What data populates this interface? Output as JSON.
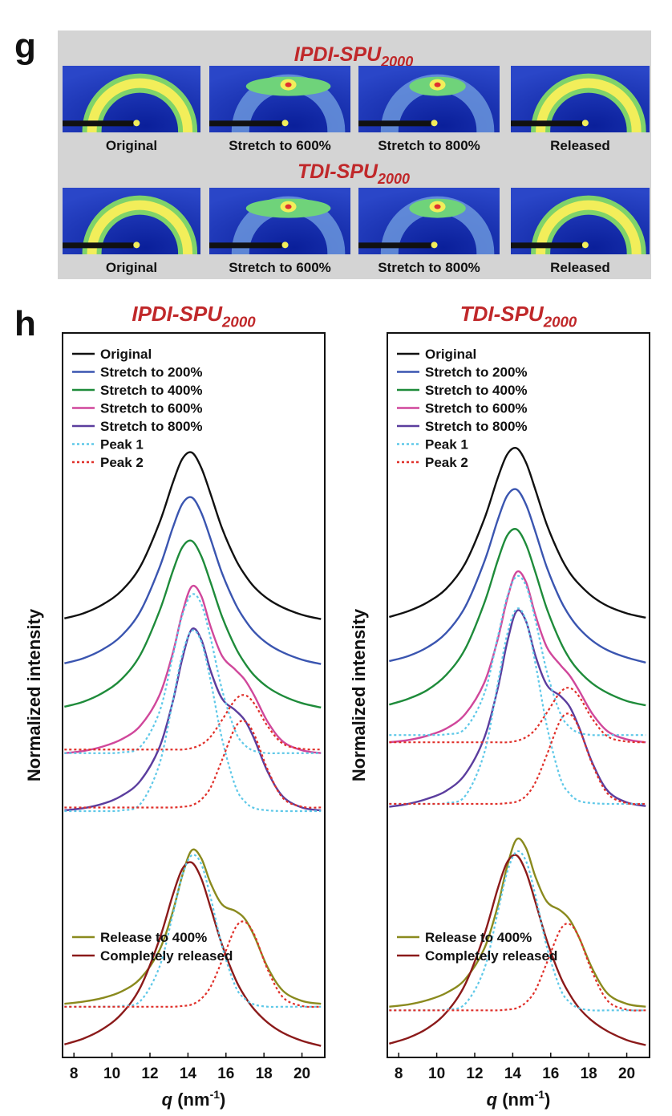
{
  "panel_g": {
    "label": "g",
    "rows": [
      {
        "title": {
          "text": "IPDI-SPU",
          "subscript": "2000"
        },
        "captions": [
          "Original",
          "Stretch to 600%",
          "Stretch to 800%",
          "Released"
        ]
      },
      {
        "title": {
          "text": "TDI-SPU",
          "subscript": "2000"
        },
        "captions": [
          "Original",
          "Stretch to 600%",
          "Stretch to 800%",
          "Released"
        ]
      }
    ]
  },
  "panel_h": {
    "label": "h"
  },
  "chart_data": [
    {
      "type": "line",
      "title": {
        "text": "IPDI-SPU",
        "subscript": "2000"
      },
      "ylabel": "Normalized intensity",
      "xlabel": {
        "symbol": "q",
        "unit": " (nm",
        "power": "-1",
        "close": ")"
      },
      "xlim": [
        7.4,
        21.2
      ],
      "xticks": [
        8,
        10,
        12,
        14,
        16,
        18,
        20
      ],
      "ylim": [
        0,
        100
      ],
      "x": [
        7.5,
        8.5,
        9.5,
        10.5,
        11.5,
        12.5,
        13.2,
        13.7,
        14.2,
        14.7,
        15.2,
        15.8,
        16.5,
        17,
        17.5,
        18.2,
        19,
        20,
        21
      ],
      "series": [
        {
          "name": "Original",
          "color": "#111111",
          "values": [
            60.6,
            61.3,
            62.5,
            64.4,
            67.8,
            73.8,
            79.3,
            82.6,
            83.5,
            81.4,
            77.7,
            73.0,
            68.8,
            66.6,
            64.9,
            63.3,
            62.1,
            61.1,
            60.5
          ]
        },
        {
          "name": "Stretch to 200%",
          "color": "#3a55b0",
          "values": [
            54.4,
            55.1,
            56.3,
            58.2,
            61.6,
            67.6,
            73.1,
            76.4,
            77.3,
            75.2,
            71.5,
            66.8,
            62.6,
            60.4,
            58.7,
            57.1,
            55.9,
            54.9,
            54.3
          ]
        },
        {
          "name": "Stretch to 400%",
          "color": "#1e8b3a",
          "values": [
            48.4,
            49.1,
            50.3,
            52.2,
            55.6,
            61.6,
            67.1,
            70.4,
            71.3,
            69.2,
            65.5,
            60.8,
            56.6,
            54.4,
            52.7,
            51.1,
            49.9,
            48.9,
            48.3
          ]
        },
        {
          "name": "Stretch to 600%",
          "color": "#d0479b",
          "values": [
            42.0,
            42.3,
            42.9,
            43.9,
            45.8,
            50.0,
            55.8,
            61.3,
            65.0,
            63.7,
            59.4,
            55.4,
            53.5,
            52.1,
            49.9,
            46.3,
            43.6,
            42.4,
            42.0
          ]
        },
        {
          "name": "Stretch to 800%",
          "color": "#5b3d9e",
          "values": [
            34.1,
            34.4,
            35.0,
            36.1,
            38.2,
            42.8,
            49.1,
            55.0,
            59.1,
            57.7,
            53.3,
            49.5,
            47.9,
            46.5,
            43.9,
            39.4,
            36.0,
            34.5,
            34.1
          ]
        },
        {
          "name": "Peak 1",
          "color": "#5ec8e8",
          "dash": "dotted",
          "values": [
            42,
            42,
            42,
            42.1,
            42.9,
            47.7,
            55.4,
            61.0,
            63.9,
            62.6,
            57.8,
            50.7,
            45.0,
            43.1,
            42.3,
            42,
            42,
            42,
            42
          ]
        },
        {
          "name": "Peak 2",
          "color": "#e0302a",
          "dash": "dotted",
          "values": [
            42.5,
            42.5,
            42.5,
            42.5,
            42.5,
            42.5,
            42.5,
            42.5,
            42.7,
            43.2,
            44.3,
            46.6,
            49.4,
            50.0,
            48.8,
            45.7,
            43.3,
            42.6,
            42.5
          ]
        },
        {
          "name": "Release to 400%",
          "color": "#8a8a1e",
          "values": [
            7.4,
            7.7,
            8.2,
            9.1,
            10.9,
            14.8,
            20.1,
            25.1,
            28.6,
            27.5,
            24.0,
            21.1,
            20.2,
            19.1,
            16.7,
            12.4,
            9.2,
            7.8,
            7.4
          ]
        },
        {
          "name": "Completely released",
          "color": "#8b1a1a",
          "values": [
            1.8,
            2.6,
            3.9,
            6.0,
            9.7,
            16.3,
            22.4,
            26.0,
            26.9,
            24.7,
            20.6,
            15.5,
            10.8,
            8.4,
            6.6,
            4.8,
            3.4,
            2.3,
            1.6
          ]
        },
        {
          "color": "#5ec8e8",
          "dash": "dotted",
          "values": [
            34,
            34,
            34,
            34.1,
            35.0,
            40.5,
            49.2,
            55.6,
            58.9,
            57.4,
            51.9,
            43.9,
            37.4,
            35.3,
            34.4,
            34.1,
            34,
            34,
            34
          ]
        },
        {
          "color": "#e0302a",
          "dash": "dotted",
          "values": [
            34.5,
            34.5,
            34.5,
            34.5,
            34.5,
            34.5,
            34.5,
            34.6,
            34.8,
            35.6,
            37.3,
            41.1,
            45.6,
            46.4,
            44.5,
            39.7,
            35.8,
            34.6,
            34.5
          ]
        },
        {
          "color": "#5ec8e8",
          "dash": "dotted",
          "values": [
            7,
            7,
            7,
            7.1,
            7.8,
            12.5,
            19.7,
            25.1,
            27.9,
            26.7,
            22.0,
            15.3,
            9.8,
            8.1,
            7.3,
            7,
            7,
            7,
            7
          ]
        },
        {
          "color": "#e0302a",
          "dash": "dotted",
          "values": [
            7,
            7,
            7,
            7,
            7,
            7,
            7,
            7.1,
            7.3,
            8.1,
            9.8,
            13.4,
            17.9,
            18.7,
            16.9,
            12.1,
            8.3,
            7.1,
            7
          ]
        }
      ]
    },
    {
      "type": "line",
      "title": {
        "text": "TDI-SPU",
        "subscript": "2000"
      },
      "ylabel": "Normalized intensity",
      "xlabel": {
        "symbol": "q",
        "unit": " (nm",
        "power": "-1",
        "close": ")"
      },
      "xlim": [
        7.4,
        21.2
      ],
      "xticks": [
        8,
        10,
        12,
        14,
        16,
        18,
        20
      ],
      "ylim": [
        0,
        100
      ],
      "x": [
        7.5,
        8.5,
        9.5,
        10.5,
        11.5,
        12.5,
        13.2,
        13.7,
        14.2,
        14.7,
        15.2,
        15.8,
        16.5,
        17,
        17.5,
        18.2,
        19,
        20,
        21
      ],
      "series": [
        {
          "name": "Original",
          "color": "#111111",
          "values": [
            60.8,
            61.6,
            62.8,
            64.7,
            68.2,
            74.3,
            79.9,
            83.2,
            84.1,
            82.1,
            78.3,
            73.5,
            69.2,
            66.9,
            65.3,
            63.6,
            62.3,
            61.3,
            60.7
          ]
        },
        {
          "name": "Stretch to 200%",
          "color": "#3a55b0",
          "values": [
            54.7,
            55.4,
            56.6,
            58.6,
            62.2,
            68.4,
            74.1,
            77.5,
            78.4,
            76.3,
            72.5,
            67.6,
            63.2,
            60.9,
            59.2,
            57.5,
            56.2,
            55.2,
            54.5
          ]
        },
        {
          "name": "Stretch to 400%",
          "color": "#1e8b3a",
          "values": [
            48.7,
            49.5,
            50.7,
            52.8,
            56.4,
            62.7,
            68.5,
            72.0,
            72.9,
            70.8,
            66.9,
            61.9,
            57.4,
            55.0,
            53.3,
            51.6,
            50.3,
            49.2,
            48.6
          ]
        },
        {
          "name": "Stretch to 600%",
          "color": "#d0479b",
          "values": [
            43.5,
            43.8,
            44.4,
            45.4,
            47.4,
            51.7,
            57.6,
            63.2,
            67.0,
            65.6,
            61.0,
            56.6,
            54.2,
            52.7,
            50.6,
            47.4,
            45.0,
            43.9,
            43.5
          ]
        },
        {
          "name": "Stretch to 800%",
          "color": "#5b3d9e",
          "values": [
            34.6,
            35.0,
            35.7,
            36.8,
            39.1,
            44.1,
            50.8,
            57.2,
            61.6,
            60.2,
            55.4,
            51.4,
            49.9,
            48.4,
            45.5,
            40.6,
            36.8,
            35.2,
            34.7
          ]
        },
        {
          "name": "Peak 1",
          "color": "#5ec8e8",
          "dash": "dotted",
          "values": [
            44.5,
            44.5,
            44.5,
            44.6,
            45.4,
            50.2,
            57.9,
            63.5,
            66.4,
            65.1,
            60.3,
            53.2,
            47.5,
            45.6,
            44.8,
            44.5,
            44.5,
            44.5,
            44.5
          ]
        },
        {
          "name": "Peak 2",
          "color": "#e0302a",
          "dash": "dotted",
          "values": [
            43.5,
            43.5,
            43.5,
            43.5,
            43.5,
            43.5,
            43.5,
            43.5,
            43.7,
            44.2,
            45.3,
            47.6,
            50.4,
            51.0,
            49.8,
            46.7,
            44.3,
            43.6,
            43.5
          ]
        },
        {
          "name": "Release to 400%",
          "color": "#8a8a1e",
          "values": [
            7.0,
            7.3,
            7.9,
            8.9,
            10.8,
            15.0,
            20.8,
            26.3,
            30.1,
            28.9,
            24.9,
            21.5,
            20.3,
            19.0,
            16.5,
            12.2,
            8.8,
            7.4,
            7.0
          ]
        },
        {
          "name": "Completely released",
          "color": "#8b1a1a",
          "values": [
            1.9,
            2.7,
            4.0,
            6.2,
            10.1,
            16.9,
            23.2,
            26.9,
            27.9,
            25.6,
            21.4,
            16.1,
            11.2,
            8.7,
            6.8,
            5.0,
            3.6,
            2.4,
            1.7
          ]
        },
        {
          "color": "#5ec8e8",
          "dash": "dotted",
          "values": [
            35,
            35,
            35,
            35.1,
            36.1,
            42.0,
            51.4,
            58.3,
            61.9,
            60.3,
            54.3,
            45.7,
            38.6,
            36.4,
            35.4,
            35.1,
            35,
            35,
            35
          ]
        },
        {
          "color": "#e0302a",
          "dash": "dotted",
          "values": [
            35,
            35,
            35,
            35,
            35,
            35,
            35,
            35.1,
            35.3,
            36.1,
            38.0,
            41.8,
            46.5,
            47.4,
            45.4,
            40.4,
            36.4,
            35.1,
            35
          ]
        },
        {
          "color": "#5ec8e8",
          "dash": "dotted",
          "values": [
            6.5,
            6.5,
            6.5,
            6.6,
            7.4,
            12.2,
            19.9,
            25.5,
            28.4,
            27.1,
            22.3,
            15.2,
            9.5,
            7.6,
            6.8,
            6.5,
            6.5,
            6.5,
            6.5
          ]
        },
        {
          "color": "#e0302a",
          "dash": "dotted",
          "values": [
            6.5,
            6.5,
            6.5,
            6.5,
            6.5,
            6.5,
            6.5,
            6.6,
            6.8,
            7.6,
            9.3,
            13.1,
            17.6,
            18.4,
            16.5,
            11.7,
            7.8,
            6.6,
            6.5
          ]
        }
      ]
    }
  ]
}
